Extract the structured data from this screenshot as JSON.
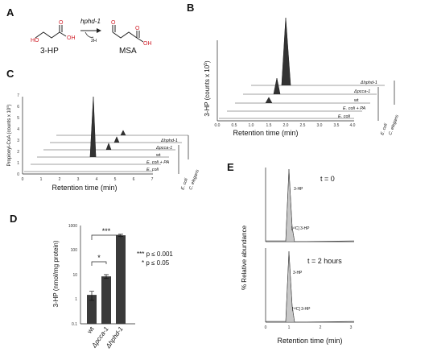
{
  "panels": {
    "A": {
      "label": "A",
      "enzyme": "hphd-1",
      "product_note": "2H",
      "substrate": "3-HP",
      "product": "MSA"
    },
    "B": {
      "label": "B",
      "ylabel": "3-HP (counts x 10",
      "ylabel_exp": "5",
      "ylabel_close": ")",
      "xlabel": "Retention time (min)",
      "xticks": [
        "0.0",
        "0.5",
        "1.0",
        "1.5",
        "2.0",
        "2.5",
        "3.0",
        "3.5",
        "4.0"
      ],
      "traces": [
        "Δhphd-1",
        "Δpcca-1",
        "wt",
        "E. coli + PA",
        "E. coli"
      ],
      "group_labels": [
        "E. coli",
        "C. elegans"
      ]
    },
    "C": {
      "label": "C",
      "ylabel": "Propionyl-CoA (counts x 10",
      "ylabel_exp": "5",
      "ylabel_close": ")",
      "xlabel": "Retention time (min)",
      "yticks": [
        "0",
        "1",
        "2",
        "3",
        "4",
        "5",
        "6",
        "7"
      ],
      "xticks": [
        "0",
        "1",
        "2",
        "3",
        "4",
        "5",
        "6",
        "7"
      ],
      "traces": [
        "Δhphd-1",
        "Δpcca-1",
        "wt",
        "E. coli + PA",
        "E. coli"
      ],
      "group_labels": [
        "E. coli",
        "C. elegans"
      ]
    },
    "D": {
      "label": "D",
      "ylabel": "3-HP (nmol/mg protein)",
      "yticks": [
        "0.1",
        "1",
        "10",
        "100",
        "1000"
      ],
      "sig1": "***",
      "sig2": "*",
      "legend1": "*** p ≤ 0.001",
      "legend2": "* p ≤ 0.05"
    },
    "E": {
      "label": "E",
      "ylabel": "% Relative abundance",
      "xlabel": "Retention time (min)",
      "time1": "t = 0",
      "time2": "t = 2 hours",
      "peak_label": "3-HP",
      "iso_label": "[¹³C] 3-HP",
      "yticks": [
        "0",
        "10",
        "20",
        "30",
        "40",
        "50",
        "60",
        "70",
        "80",
        "90",
        "100"
      ],
      "xticks": [
        "0",
        "1",
        "2",
        "3"
      ]
    }
  },
  "chart_data": [
    {
      "type": "bar",
      "panel": "D",
      "categories": [
        "wt",
        "Δpcca-1",
        "Δhphd-1"
      ],
      "values": [
        1.5,
        8.5,
        400
      ],
      "errors": [
        0.6,
        1.5,
        40
      ],
      "ylabel": "3-HP (nmol/mg protein)",
      "ylim": [
        0.1,
        1000
      ],
      "yscale": "log"
    }
  ]
}
